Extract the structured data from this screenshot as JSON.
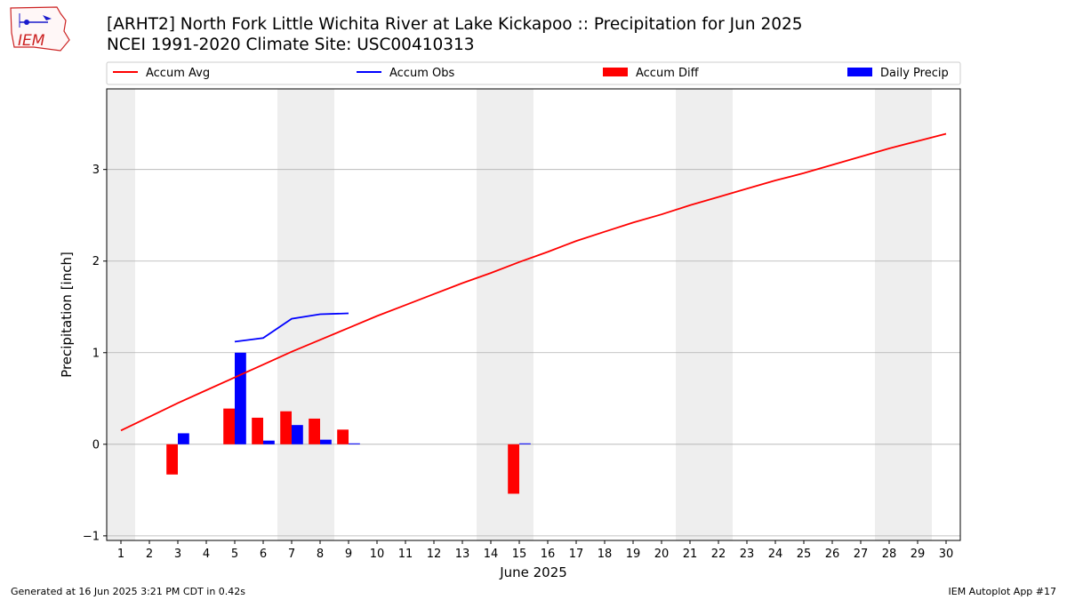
{
  "header": {
    "logo_text": "IEM",
    "title_line1": "[ARHT2] North Fork Little Wichita River at Lake Kickapoo :: Precipitation for Jun 2025",
    "title_line2": "NCEI 1991-2020 Climate Site: USC00410313"
  },
  "footer": {
    "left": "Generated at 16 Jun 2025 3:21 PM CDT in 0.42s",
    "right": "IEM Autoplot App #17"
  },
  "colors": {
    "avg": "#ff0000",
    "obs": "#0000ff",
    "diff": "#ff0000",
    "daily": "#0000ff",
    "weekend_band": "#eeeeee",
    "grid": "#b0b0b0"
  },
  "chart_data": {
    "type": "bar",
    "xlabel": "June 2025",
    "ylabel": "Precipitation [inch]",
    "xlim": [
      0.5,
      30.5
    ],
    "ylim": [
      -1.05,
      3.88
    ],
    "yticks": [
      -1,
      0,
      1,
      2,
      3
    ],
    "ytick_labels": [
      "−1",
      "0",
      "1",
      "2",
      "3"
    ],
    "x": [
      1,
      2,
      3,
      4,
      5,
      6,
      7,
      8,
      9,
      10,
      11,
      12,
      13,
      14,
      15,
      16,
      17,
      18,
      19,
      20,
      21,
      22,
      23,
      24,
      25,
      26,
      27,
      28,
      29,
      30
    ],
    "x_tick_labels": [
      "1",
      "2",
      "3",
      "4",
      "5",
      "6",
      "7",
      "8",
      "9",
      "10",
      "11",
      "12",
      "13",
      "14",
      "15",
      "16",
      "17",
      "18",
      "19",
      "20",
      "21",
      "22",
      "23",
      "24",
      "25",
      "26",
      "27",
      "28",
      "29",
      "30"
    ],
    "grid": "horizontal",
    "weekend_bands": [
      [
        0.5,
        1.5
      ],
      [
        6.5,
        8.5
      ],
      [
        13.5,
        15.5
      ],
      [
        20.5,
        22.5
      ],
      [
        27.5,
        29.5
      ]
    ],
    "legend_position": "top",
    "series": [
      {
        "name": "Accum Avg",
        "kind": "line",
        "values": [
          0.15,
          0.3,
          0.45,
          0.59,
          0.73,
          0.87,
          1.01,
          1.14,
          1.27,
          1.4,
          1.52,
          1.64,
          1.76,
          1.87,
          1.99,
          2.1,
          2.22,
          2.32,
          2.42,
          2.51,
          2.61,
          2.7,
          2.79,
          2.88,
          2.96,
          3.05,
          3.14,
          3.23,
          3.31,
          3.39
        ]
      },
      {
        "name": "Accum Obs",
        "kind": "line",
        "values": [
          null,
          null,
          null,
          null,
          1.12,
          1.16,
          1.37,
          1.42,
          1.43,
          null,
          null,
          null,
          null,
          null,
          null,
          null,
          null,
          null,
          null,
          null,
          null,
          null,
          null,
          null,
          null,
          null,
          null,
          null,
          null,
          null
        ]
      },
      {
        "name": "Accum Diff",
        "kind": "bar",
        "values": [
          null,
          null,
          -0.33,
          null,
          0.39,
          0.29,
          0.36,
          0.28,
          0.16,
          null,
          null,
          null,
          null,
          null,
          -0.54,
          null,
          null,
          null,
          null,
          null,
          null,
          null,
          null,
          null,
          null,
          null,
          null,
          null,
          null,
          null
        ]
      },
      {
        "name": "Daily Precip",
        "kind": "bar",
        "values": [
          null,
          null,
          0.12,
          null,
          1.0,
          0.04,
          0.21,
          0.05,
          0.01,
          null,
          null,
          null,
          null,
          null,
          0.01,
          null,
          null,
          null,
          null,
          null,
          null,
          null,
          null,
          null,
          null,
          null,
          null,
          null,
          null,
          null
        ]
      }
    ]
  }
}
